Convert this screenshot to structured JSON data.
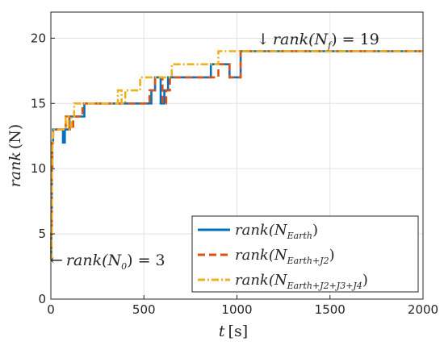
{
  "chart_data": {
    "type": "line",
    "xlim": [
      0,
      2000
    ],
    "ylim": [
      0,
      22
    ],
    "xticks": [
      "0",
      "500",
      "1000",
      "1500",
      "2000"
    ],
    "yticks": [
      "0",
      "5",
      "10",
      "15",
      "20"
    ],
    "xlabel": {
      "var": "t",
      "unit": "[s]"
    },
    "ylabel": {
      "var": "rank",
      "unit": "(N)"
    },
    "grid": true,
    "legend_position": "bottom-right",
    "series": [
      {
        "name": {
          "main": "rank(N",
          "sub": "Earth",
          "close": ")"
        },
        "color": "#0072BD",
        "style": "solid",
        "x": [
          0,
          2,
          2,
          5,
          5,
          8,
          8,
          12,
          12,
          65,
          65,
          75,
          75,
          100,
          100,
          130,
          130,
          180,
          180,
          540,
          540,
          560,
          560,
          590,
          590,
          610,
          610,
          630,
          630,
          860,
          860,
          960,
          960,
          1020,
          1020,
          2000
        ],
        "y": [
          3,
          3,
          5,
          5,
          10,
          10,
          12,
          12,
          13,
          13,
          12,
          12,
          13,
          13,
          14,
          14,
          14,
          14,
          15,
          15,
          16,
          16,
          17,
          17,
          15,
          15,
          16,
          16,
          17,
          17,
          18,
          18,
          17,
          17,
          19,
          19
        ]
      },
      {
        "name": {
          "main": "rank(N",
          "sub": "Earth+J2",
          "close": ")"
        },
        "color": "#D95319",
        "style": "dashed",
        "x": [
          0,
          2,
          2,
          5,
          5,
          8,
          8,
          12,
          12,
          80,
          80,
          100,
          100,
          120,
          120,
          170,
          170,
          530,
          530,
          560,
          560,
          600,
          600,
          620,
          620,
          640,
          640,
          900,
          900,
          960,
          960,
          1020,
          1020,
          2000
        ],
        "y": [
          3,
          3,
          5,
          5,
          10,
          10,
          12,
          12,
          13,
          13,
          14,
          14,
          13,
          13,
          14,
          14,
          15,
          15,
          16,
          16,
          17,
          17,
          15,
          15,
          16,
          16,
          17,
          17,
          18,
          18,
          17,
          17,
          19,
          19
        ]
      },
      {
        "name": {
          "main": "rank(N",
          "sub": "Earth+J2+J3+J4",
          "close": ")"
        },
        "color": "#EDB120",
        "style": "dashdot",
        "x": [
          0,
          2,
          2,
          5,
          5,
          8,
          8,
          12,
          12,
          80,
          80,
          95,
          95,
          110,
          110,
          125,
          125,
          140,
          140,
          360,
          360,
          380,
          380,
          400,
          400,
          480,
          480,
          510,
          510,
          650,
          650,
          900,
          900,
          920,
          920,
          2000
        ],
        "y": [
          3,
          3,
          5,
          5,
          10,
          10,
          12,
          12,
          13,
          13,
          14,
          14,
          13,
          13,
          14,
          14,
          15,
          15,
          15,
          15,
          16,
          16,
          15,
          15,
          16,
          16,
          17,
          17,
          17,
          17,
          18,
          18,
          19,
          19,
          19,
          19
        ]
      }
    ],
    "annotations": {
      "final": {
        "arrow": "↓",
        "text": "rank(N",
        "sub": "f",
        "value": ") = 19"
      },
      "initial": {
        "arrow": "←",
        "text": "rank(N",
        "sub": "0",
        "value": ") = 3"
      }
    }
  }
}
